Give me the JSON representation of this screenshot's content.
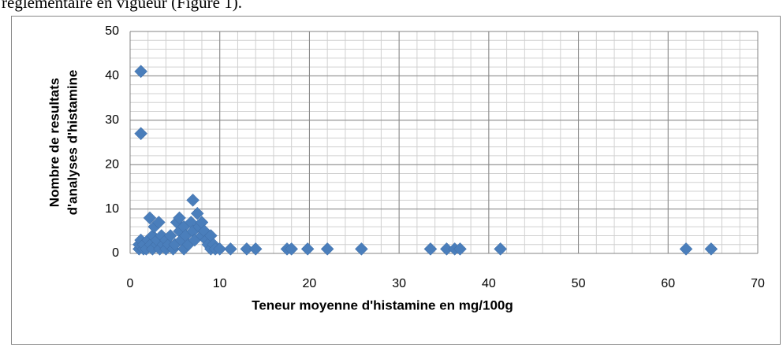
{
  "page_text": "réglementaire en vigueur (Figure 1).",
  "chart_data": {
    "type": "scatter",
    "xlabel": "Teneur moyenne d'histamine en mg/100g",
    "ylabel": [
      "Nombre de resultats",
      "d'analyses d'histamine"
    ],
    "color": "#4a7ebb",
    "x": [
      1.2,
      1.2,
      1,
      1,
      1.2,
      1.5,
      1.5,
      1.8,
      2,
      2.2,
      2.3,
      2.5,
      2.5,
      2.7,
      3,
      3,
      3.2,
      3.3,
      3.5,
      3.7,
      4,
      4,
      4.3,
      4.5,
      4.8,
      5,
      5.2,
      5.5,
      5.5,
      5.7,
      6,
      6,
      6.2,
      6.5,
      6.8,
      7,
      7,
      7.2,
      7.5,
      7.7,
      8,
      8,
      8.3,
      8.5,
      8.7,
      9,
      9,
      9.3,
      9.5,
      10,
      11.2,
      13,
      14,
      17.5,
      18,
      19.8,
      22,
      25.8,
      33.5,
      35.3,
      36.2,
      36.8,
      41.3,
      62,
      64.8
    ],
    "values": [
      41,
      27,
      1,
      2,
      3,
      1,
      2,
      1,
      3,
      8,
      2,
      1,
      4,
      6,
      2,
      3,
      7,
      1,
      4,
      2,
      1,
      3,
      2,
      4,
      1,
      2,
      7,
      8,
      5,
      3,
      1,
      6,
      4,
      2,
      7,
      12,
      5,
      3,
      9,
      6,
      4,
      7,
      5,
      3,
      2,
      1,
      4,
      2,
      1,
      1,
      1,
      1,
      1,
      1,
      1,
      1,
      1,
      1,
      1,
      1,
      1,
      1,
      1,
      1,
      1
    ],
    "xlim": [
      0,
      70
    ],
    "xticks": [
      0,
      10,
      20,
      30,
      40,
      50,
      60,
      70
    ],
    "ylim": [
      0,
      50
    ],
    "yticks": [
      0,
      10,
      20,
      30,
      40,
      50
    ],
    "grid": true,
    "minor_grid_step": [
      2,
      2
    ]
  }
}
